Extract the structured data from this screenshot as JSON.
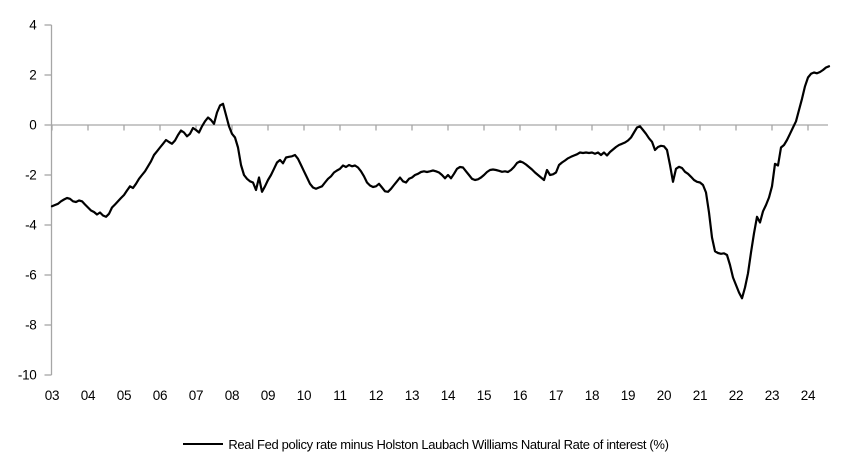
{
  "chart_data": {
    "type": "line",
    "title": "",
    "legend": "Real Fed policy rate minus Holston Laubach Williams Natural Rate of interest (%)",
    "unit": "%",
    "x_start_year": 2003,
    "x_frequency": "monthly",
    "x_tick_labels": [
      "03",
      "04",
      "05",
      "06",
      "07",
      "08",
      "09",
      "10",
      "11",
      "12",
      "13",
      "14",
      "15",
      "16",
      "17",
      "18",
      "19",
      "20",
      "21",
      "22",
      "23",
      "24"
    ],
    "y_ticks": [
      4,
      2,
      0,
      -2,
      -4,
      -6,
      -8,
      -10
    ],
    "ylim": [
      -10,
      4
    ],
    "grid": "off",
    "legend_position": "bottom",
    "axis_color": "#a6a6a6",
    "series": [
      {
        "name": "Real Fed policy rate minus Holston Laubach Williams Natural Rate of interest (%)",
        "color": "#000000",
        "values": [
          -3.25,
          -3.2,
          -3.15,
          -3.05,
          -2.98,
          -2.92,
          -2.95,
          -3.05,
          -3.08,
          -3.02,
          -3.05,
          -3.18,
          -3.3,
          -3.42,
          -3.48,
          -3.58,
          -3.5,
          -3.62,
          -3.67,
          -3.55,
          -3.3,
          -3.18,
          -3.05,
          -2.92,
          -2.8,
          -2.62,
          -2.45,
          -2.52,
          -2.35,
          -2.15,
          -2.0,
          -1.85,
          -1.65,
          -1.45,
          -1.2,
          -1.05,
          -0.9,
          -0.75,
          -0.6,
          -0.68,
          -0.75,
          -0.62,
          -0.4,
          -0.22,
          -0.3,
          -0.45,
          -0.35,
          -0.12,
          -0.2,
          -0.3,
          -0.05,
          0.15,
          0.3,
          0.2,
          0.05,
          0.5,
          0.78,
          0.85,
          0.4,
          -0.05,
          -0.35,
          -0.5,
          -0.9,
          -1.6,
          -2.0,
          -2.15,
          -2.25,
          -2.3,
          -2.6,
          -2.1,
          -2.67,
          -2.45,
          -2.2,
          -2.0,
          -1.75,
          -1.5,
          -1.4,
          -1.53,
          -1.3,
          -1.27,
          -1.25,
          -1.2,
          -1.35,
          -1.6,
          -1.85,
          -2.1,
          -2.35,
          -2.5,
          -2.55,
          -2.5,
          -2.45,
          -2.3,
          -2.15,
          -2.05,
          -1.9,
          -1.82,
          -1.75,
          -1.62,
          -1.68,
          -1.6,
          -1.65,
          -1.62,
          -1.7,
          -1.85,
          -2.05,
          -2.3,
          -2.42,
          -2.48,
          -2.45,
          -2.35,
          -2.5,
          -2.65,
          -2.67,
          -2.55,
          -2.4,
          -2.25,
          -2.1,
          -2.25,
          -2.3,
          -2.15,
          -2.1,
          -2.0,
          -1.95,
          -1.88,
          -1.85,
          -1.88,
          -1.85,
          -1.82,
          -1.85,
          -1.9,
          -2.0,
          -2.13,
          -2.0,
          -2.13,
          -1.95,
          -1.75,
          -1.68,
          -1.7,
          -1.85,
          -2.0,
          -2.15,
          -2.2,
          -2.17,
          -2.1,
          -2.0,
          -1.88,
          -1.8,
          -1.78,
          -1.8,
          -1.83,
          -1.87,
          -1.85,
          -1.88,
          -1.8,
          -1.68,
          -1.52,
          -1.45,
          -1.5,
          -1.58,
          -1.68,
          -1.78,
          -1.9,
          -2.0,
          -2.1,
          -2.2,
          -1.8,
          -2.0,
          -1.97,
          -1.9,
          -1.6,
          -1.5,
          -1.42,
          -1.33,
          -1.27,
          -1.22,
          -1.17,
          -1.1,
          -1.12,
          -1.1,
          -1.12,
          -1.1,
          -1.15,
          -1.1,
          -1.2,
          -1.1,
          -1.22,
          -1.08,
          -0.98,
          -0.88,
          -0.8,
          -0.75,
          -0.7,
          -0.62,
          -0.5,
          -0.3,
          -0.1,
          -0.05,
          -0.2,
          -0.35,
          -0.53,
          -0.67,
          -1.0,
          -0.88,
          -0.83,
          -0.85,
          -1.0,
          -1.6,
          -2.27,
          -1.75,
          -1.67,
          -1.72,
          -1.87,
          -1.95,
          -2.07,
          -2.2,
          -2.27,
          -2.3,
          -2.4,
          -2.7,
          -3.5,
          -4.5,
          -5.05,
          -5.12,
          -5.15,
          -5.13,
          -5.2,
          -5.6,
          -6.1,
          -6.4,
          -6.7,
          -6.93,
          -6.5,
          -5.93,
          -5.1,
          -4.33,
          -3.67,
          -3.9,
          -3.45,
          -3.2,
          -2.9,
          -2.45,
          -1.55,
          -1.62,
          -0.9,
          -0.8,
          -0.6,
          -0.35,
          -0.1,
          0.15,
          0.6,
          1.05,
          1.55,
          1.9,
          2.05,
          2.1,
          2.07,
          2.12,
          2.2,
          2.3,
          2.35
        ]
      }
    ]
  }
}
